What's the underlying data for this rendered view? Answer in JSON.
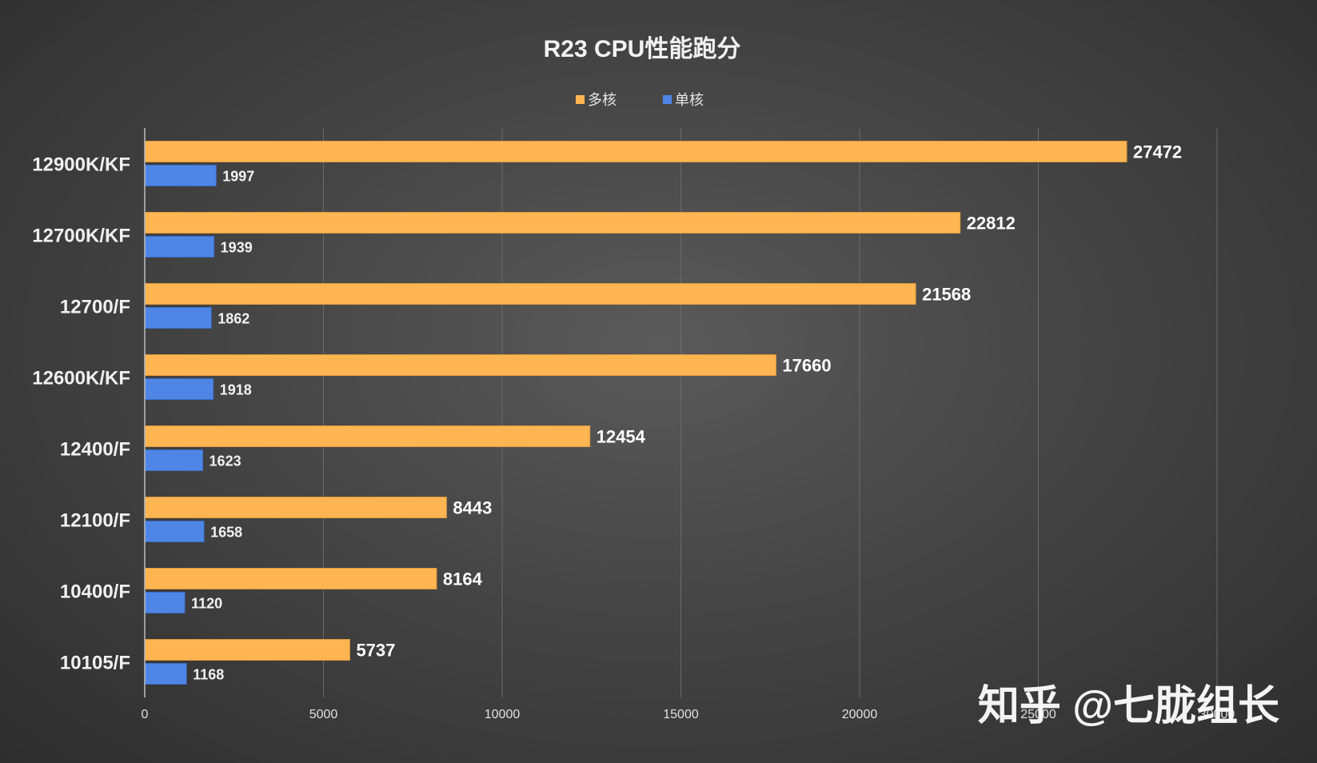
{
  "chart_data": {
    "type": "bar",
    "orientation": "horizontal",
    "title": "R23 CPU性能跑分",
    "xlabel": "",
    "ylabel": "",
    "categories": [
      "12900K/KF",
      "12700K/KF",
      "12700/F",
      "12600K/KF",
      "12400/F",
      "12100/F",
      "10400/F",
      "10105/F"
    ],
    "series": [
      {
        "name": "多核",
        "color": "#ffb552",
        "values": [
          27472,
          22812,
          21568,
          17660,
          12454,
          8443,
          8164,
          5737
        ]
      },
      {
        "name": "单核",
        "color": "#4f86e6",
        "values": [
          1997,
          1939,
          1862,
          1918,
          1623,
          1658,
          1120,
          1168
        ]
      }
    ],
    "xlim": [
      0,
      30000
    ],
    "xticks": [
      0,
      5000,
      10000,
      15000,
      20000,
      25000,
      30000
    ],
    "grid": "vertical",
    "legend_position": "top"
  },
  "watermark": "知乎 @七胧组长"
}
